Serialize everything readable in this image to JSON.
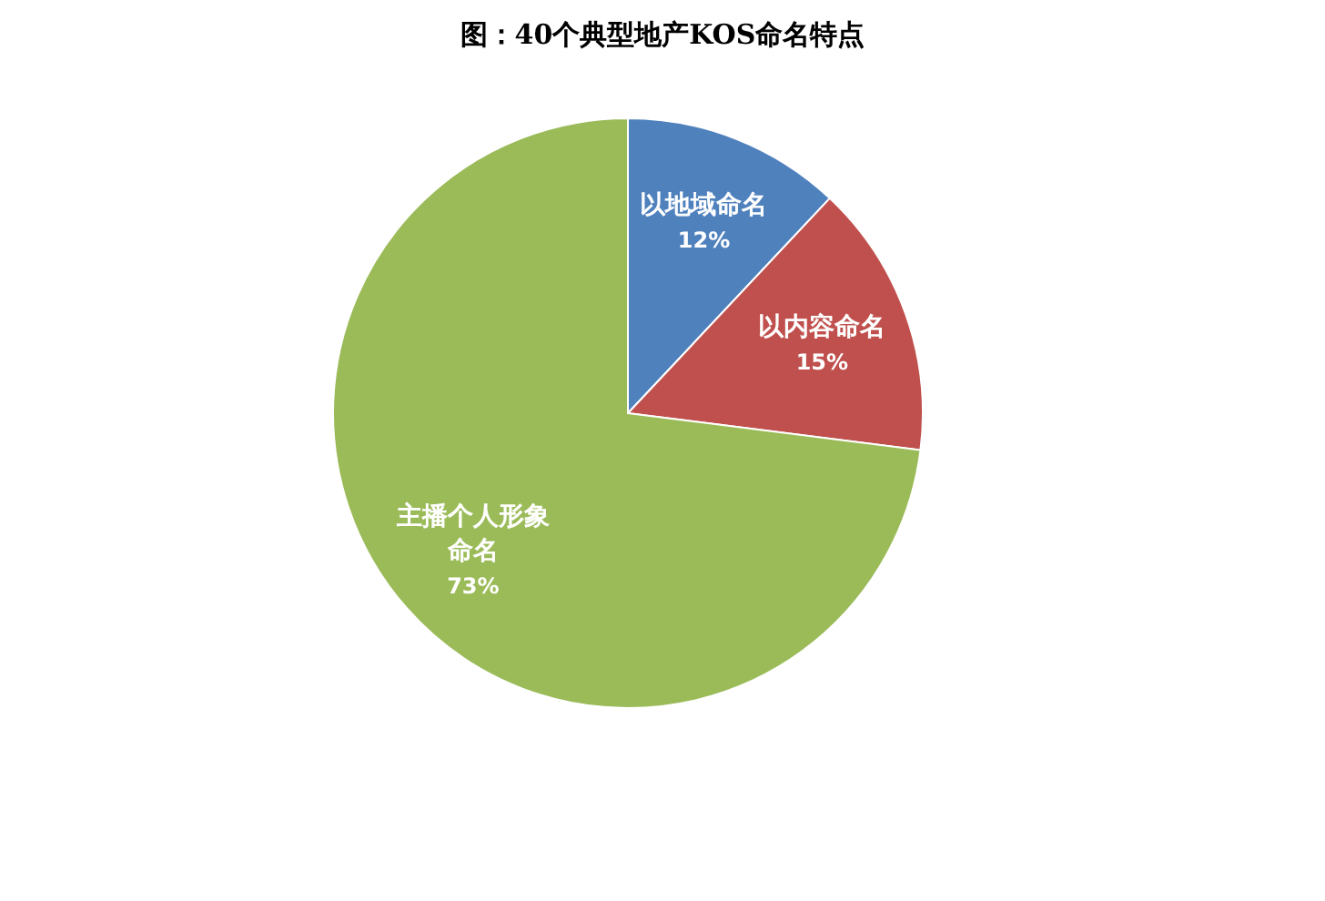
{
  "chart_data": {
    "type": "pie",
    "title": "图：40个典型地产KOS命名特点",
    "categories": [
      "以地域命名",
      "以内容命名",
      "主播个人形象命名"
    ],
    "values": [
      12,
      15,
      73
    ],
    "colors": [
      "#4f81bd",
      "#c0504d",
      "#9bbb59"
    ],
    "value_labels": [
      "12%",
      "15%",
      "73%"
    ]
  }
}
